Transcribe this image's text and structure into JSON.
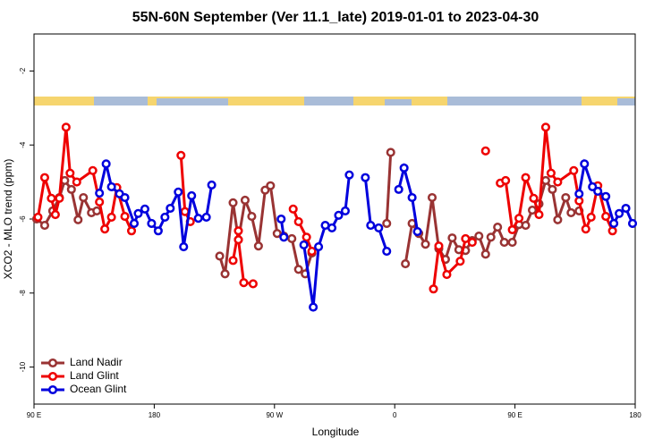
{
  "chart_data": {
    "type": "line",
    "title": "55N-60N September (Ver 11.1_late)   2019-01-01 to 2023-04-30",
    "x_label": "Longitude",
    "y_label": "XCO2 - MLO trend (ppm)",
    "xlim": [
      90,
      540
    ],
    "xticks": [
      {
        "value": 90,
        "label": "90 E"
      },
      {
        "value": 180,
        "label": "180"
      },
      {
        "value": 270,
        "label": "90 W"
      },
      {
        "value": 360,
        "label": "0"
      },
      {
        "value": 450,
        "label": "90 E"
      },
      {
        "value": 540,
        "label": "180"
      }
    ],
    "ylim": [
      -11,
      -1
    ],
    "yticks": [
      -2,
      -4,
      -6,
      -8,
      -10
    ],
    "legend": "lower left",
    "series": [
      {
        "name": "Land Nadir",
        "color": "#993333",
        "x": [
          92,
          98,
          104,
          109,
          113,
          118,
          123,
          127,
          133,
          137,
          null,
          229,
          233,
          239,
          243,
          248,
          253,
          258,
          263,
          267,
          272,
          277,
          283,
          288,
          293,
          298,
          null,
          354,
          357,
          null,
          368,
          373,
          378,
          383,
          388,
          393,
          398,
          403,
          408,
          413,
          418,
          423,
          428,
          432,
          437,
          442,
          448,
          453,
          458,
          463,
          468,
          473,
          478,
          482,
          488,
          492,
          498
        ],
        "values": [
          -6.0,
          -6.17,
          -5.78,
          -5.42,
          -4.96,
          -5.2,
          -6.02,
          -5.42,
          -5.83,
          -5.78,
          null,
          -7.0,
          -7.48,
          -5.56,
          -6.56,
          -5.49,
          -5.93,
          -6.73,
          -5.22,
          -5.1,
          -6.39,
          -6.46,
          -6.53,
          -7.36,
          -7.48,
          -6.92,
          null,
          -6.12,
          -4.2,
          null,
          -7.21,
          -6.12,
          -6.39,
          -6.68,
          -5.42,
          -6.8,
          -7.09,
          -6.51,
          -6.83,
          -6.85,
          -6.58,
          -6.46,
          -6.95,
          -6.49,
          -6.22,
          -6.63,
          -6.63,
          -6.15,
          -6.17,
          -5.76,
          -5.59,
          -4.96,
          -5.2,
          -6.02,
          -5.42,
          -5.83,
          -5.78
        ]
      },
      {
        "name": "Land Glint",
        "color": "#ee0000",
        "x": [
          93,
          98,
          103,
          106,
          109,
          114,
          117,
          122,
          134,
          139,
          143,
          148,
          152,
          158,
          163,
          null,
          200,
          203,
          207,
          null,
          239,
          243,
          243,
          247,
          254,
          null,
          284,
          288,
          294,
          298,
          null,
          389,
          393,
          399,
          409,
          413,
          418,
          null,
          428,
          null,
          439,
          443,
          448,
          453,
          458,
          464,
          468,
          473,
          477,
          482,
          494,
          498,
          503,
          507,
          512,
          518,
          523
        ],
        "values": [
          -5.95,
          -4.88,
          -5.44,
          -5.88,
          -5.44,
          -3.52,
          -4.76,
          -5.0,
          -4.69,
          -5.54,
          -6.27,
          -5.95,
          -5.15,
          -5.93,
          -6.32,
          null,
          -4.28,
          -5.8,
          -6.07,
          null,
          -7.12,
          -6.32,
          -6.56,
          -7.72,
          -7.75,
          null,
          -5.73,
          -6.07,
          -6.49,
          -6.87,
          null,
          -7.89,
          -6.73,
          -7.5,
          -7.14,
          -6.53,
          -6.63,
          null,
          -4.16,
          null,
          -5.03,
          -4.96,
          -6.29,
          -5.98,
          -4.88,
          -5.44,
          -5.88,
          -3.52,
          -4.76,
          -5.0,
          -4.69,
          -5.51,
          -6.27,
          -5.95,
          -5.1,
          -5.93,
          -6.32
        ]
      },
      {
        "name": "Ocean Glint",
        "color": "#0000dd",
        "x": [
          139,
          144,
          148,
          154,
          158,
          165,
          168,
          173,
          178,
          183,
          188,
          192,
          198,
          202,
          208,
          213,
          219,
          223,
          null,
          275,
          277,
          null,
          292,
          299,
          303,
          308,
          313,
          318,
          323,
          326,
          null,
          338,
          342,
          348,
          354,
          null,
          363,
          367,
          373,
          377,
          null,
          498,
          502,
          508,
          512,
          518,
          524,
          528,
          533,
          538
        ],
        "values": [
          -5.3,
          -4.51,
          -5.13,
          -5.32,
          -5.42,
          -6.12,
          -5.85,
          -5.73,
          -6.12,
          -6.32,
          -5.95,
          -5.71,
          -5.27,
          -6.75,
          -5.37,
          -5.98,
          -5.95,
          -5.08,
          null,
          -6.0,
          -6.49,
          null,
          -6.7,
          -8.38,
          -6.75,
          -6.17,
          -6.24,
          -5.9,
          -5.78,
          -4.81,
          null,
          -4.88,
          -6.17,
          -6.24,
          -6.87,
          null,
          -5.2,
          -4.62,
          -5.42,
          -6.34,
          null,
          -5.32,
          -4.51,
          -5.13,
          -5.25,
          -5.39,
          -6.12,
          -5.85,
          -5.71,
          -6.12
        ]
      }
    ]
  }
}
